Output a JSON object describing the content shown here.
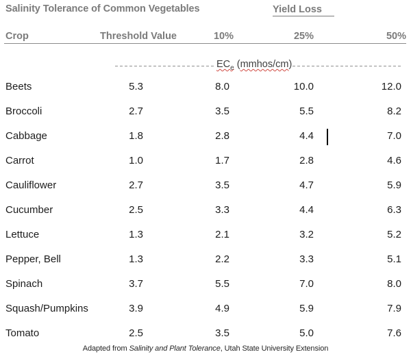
{
  "header": {
    "title": "Salinity Tolerance of Common Vegetables",
    "yield_loss_label": "Yield Loss"
  },
  "table": {
    "columns": [
      "Crop",
      "Threshold Value",
      "10%",
      "25%",
      "50%"
    ],
    "unit_line": {
      "ec": "EC",
      "ec_sub": "e",
      "pre": " (",
      "unit": "mmhos/cm",
      "post": ")"
    },
    "rows": [
      {
        "crop": "Beets",
        "threshold": "5.3",
        "loss_10": "8.0",
        "loss_25": "10.0",
        "loss_50": "12.0"
      },
      {
        "crop": "Broccoli",
        "threshold": "2.7",
        "loss_10": "3.5",
        "loss_25": "5.5",
        "loss_50": "8.2"
      },
      {
        "crop": "Cabbage",
        "threshold": "1.8",
        "loss_10": "2.8",
        "loss_25": "4.4",
        "loss_50": "7.0"
      },
      {
        "crop": "Carrot",
        "threshold": "1.0",
        "loss_10": "1.7",
        "loss_25": "2.8",
        "loss_50": "4.6"
      },
      {
        "crop": "Cauliflower",
        "threshold": "2.7",
        "loss_10": "3.5",
        "loss_25": "4.7",
        "loss_50": "5.9"
      },
      {
        "crop": "Cucumber",
        "threshold": "2.5",
        "loss_10": "3.3",
        "loss_25": "4.4",
        "loss_50": "6.3"
      },
      {
        "crop": "Lettuce",
        "threshold": "1.3",
        "loss_10": "2.1",
        "loss_25": "3.2",
        "loss_50": "5.2"
      },
      {
        "crop": "Pepper, Bell",
        "threshold": "1.3",
        "loss_10": "2.2",
        "loss_25": "3.3",
        "loss_50": "5.1"
      },
      {
        "crop": "Spinach",
        "threshold": "3.7",
        "loss_10": "5.5",
        "loss_25": "7.0",
        "loss_50": "8.0"
      },
      {
        "crop": "Squash/Pumpkins",
        "threshold": "3.9",
        "loss_10": "4.9",
        "loss_25": "5.9",
        "loss_50": "7.9"
      },
      {
        "crop": "Tomato",
        "threshold": "2.5",
        "loss_10": "3.5",
        "loss_25": "5.0",
        "loss_50": "7.6"
      }
    ]
  },
  "footer": {
    "prefix": "Adapted from ",
    "source_title": "Salinity and Plant Tolerance",
    "suffix": ", Utah State University Extension"
  },
  "colors": {
    "heading_gray": "#7b7b7b",
    "body_text": "#1c1c1c",
    "rule_gray": "#8a8a8a",
    "spellcheck_red": "#d04a42",
    "background": "#ffffff"
  }
}
